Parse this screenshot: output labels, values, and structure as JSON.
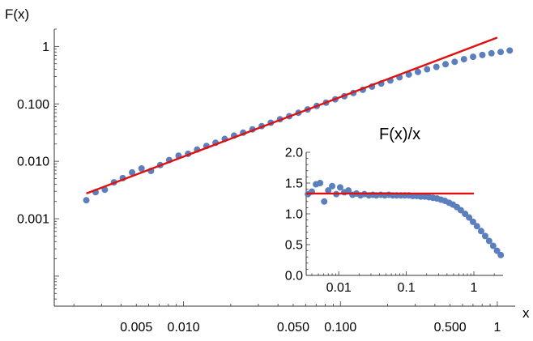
{
  "chart_data": [
    {
      "type": "scatter",
      "title": "",
      "xlabel": "x",
      "ylabel": "F(x)",
      "xscale": "log",
      "yscale": "log",
      "xlim": [
        0.0015,
        1.3
      ],
      "ylim": [
        3e-05,
        2.0
      ],
      "xticks": [
        {
          "value": 0.005,
          "label": "0.005"
        },
        {
          "value": 0.01,
          "label": "0.010"
        },
        {
          "value": 0.05,
          "label": "0.050"
        },
        {
          "value": 0.1,
          "label": "0.100"
        },
        {
          "value": 0.5,
          "label": "0.500"
        },
        {
          "value": 1,
          "label": "1"
        }
      ],
      "yticks": [
        {
          "value": 0.001,
          "label": "0.001"
        },
        {
          "value": 0.01,
          "label": "0.010"
        },
        {
          "value": 0.1,
          "label": "0.100"
        },
        {
          "value": 1,
          "label": "1"
        }
      ],
      "series": [
        {
          "kind": "points",
          "color": "#5b7fbd",
          "x": [
            0.0024,
            0.00275,
            0.00315,
            0.0036,
            0.0041,
            0.0047,
            0.0054,
            0.0062,
            0.0071,
            0.0081,
            0.0093,
            0.0107,
            0.0122,
            0.014,
            0.016,
            0.0183,
            0.021,
            0.024,
            0.0275,
            0.0315,
            0.036,
            0.0412,
            0.0472,
            0.054,
            0.0618,
            0.0707,
            0.081,
            0.0927,
            0.106,
            0.121,
            0.139,
            0.159,
            0.182,
            0.208,
            0.238,
            0.273,
            0.312,
            0.357,
            0.409,
            0.468,
            0.535,
            0.613,
            0.701,
            0.803,
            0.918,
            1.05,
            1.2
          ],
          "y": [
            0.0021,
            0.0029,
            0.0032,
            0.0043,
            0.0051,
            0.0064,
            0.0075,
            0.0068,
            0.0086,
            0.0105,
            0.0125,
            0.0135,
            0.016,
            0.0185,
            0.021,
            0.0245,
            0.028,
            0.0315,
            0.036,
            0.041,
            0.047,
            0.054,
            0.061,
            0.07,
            0.08,
            0.092,
            0.105,
            0.12,
            0.136,
            0.155,
            0.176,
            0.2,
            0.226,
            0.255,
            0.29,
            0.325,
            0.36,
            0.4,
            0.44,
            0.49,
            0.54,
            0.6,
            0.66,
            0.71,
            0.76,
            0.8,
            0.85
          ]
        },
        {
          "kind": "line",
          "color": "#e01010",
          "x": [
            0.0024,
            1.0
          ],
          "y": [
            0.00275,
            1.43
          ]
        }
      ]
    },
    {
      "type": "scatter",
      "title": "F(x)/x",
      "xscale": "log",
      "yscale": "linear",
      "xlim": [
        0.0033,
        2.7
      ],
      "ylim": [
        0,
        2.0
      ],
      "xticks": [
        {
          "value": 0.01,
          "label": "0.01"
        },
        {
          "value": 0.1,
          "label": "0.1"
        },
        {
          "value": 1,
          "label": "1"
        }
      ],
      "yticks": [
        {
          "value": 0,
          "label": "0.0"
        },
        {
          "value": 0.5,
          "label": "0.5"
        },
        {
          "value": 1,
          "label": "1.0"
        },
        {
          "value": 1.5,
          "label": "1.5"
        },
        {
          "value": 2,
          "label": "2.0"
        }
      ],
      "series": [
        {
          "kind": "points",
          "color": "#5b7fbd",
          "x": [
            0.0035,
            0.004,
            0.0046,
            0.0053,
            0.0061,
            0.007,
            0.008,
            0.0092,
            0.0105,
            0.0121,
            0.0139,
            0.016,
            0.0183,
            0.021,
            0.024,
            0.028,
            0.032,
            0.036,
            0.042,
            0.048,
            0.055,
            0.063,
            0.072,
            0.083,
            0.095,
            0.109,
            0.125,
            0.143,
            0.164,
            0.188,
            0.216,
            0.248,
            0.284,
            0.326,
            0.374,
            0.43,
            0.49,
            0.56,
            0.64,
            0.74,
            0.85,
            0.97,
            1.11,
            1.28,
            1.47,
            1.68,
            1.93,
            2.2,
            2.5
          ],
          "y": [
            1.32,
            1.36,
            1.48,
            1.5,
            1.2,
            1.38,
            1.45,
            1.32,
            1.43,
            1.35,
            1.38,
            1.31,
            1.33,
            1.3,
            1.32,
            1.3,
            1.31,
            1.3,
            1.31,
            1.3,
            1.31,
            1.3,
            1.3,
            1.3,
            1.3,
            1.3,
            1.29,
            1.29,
            1.28,
            1.28,
            1.27,
            1.26,
            1.25,
            1.23,
            1.21,
            1.18,
            1.15,
            1.11,
            1.06,
            1.0,
            0.94,
            0.87,
            0.8,
            0.72,
            0.64,
            0.56,
            0.48,
            0.4,
            0.33
          ]
        },
        {
          "kind": "line",
          "color": "#e01010",
          "x": [
            0.0033,
            1.0
          ],
          "y": [
            1.33,
            1.33
          ]
        }
      ]
    }
  ]
}
